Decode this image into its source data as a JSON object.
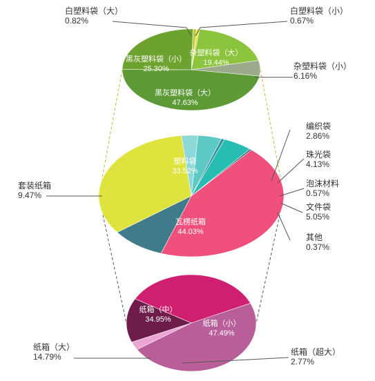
{
  "chart_data": [
    {
      "type": "pie",
      "title": "",
      "slices": [
        {
          "name": "白塑料袋（大）",
          "value_label": "0.82%",
          "value": 0.82,
          "color": "#b3cc38"
        },
        {
          "name": "白塑料袋（小）",
          "value_label": "0.67%",
          "value": 0.67,
          "color": "#e6e23c"
        },
        {
          "name": "杂塑料袋（大）",
          "value_label": "19.44%",
          "value": 19.44,
          "color": "#8cc43e"
        },
        {
          "name": "杂塑料袋（小）",
          "value_label": "6.16%",
          "value": 6.16,
          "color": "#9cab8c"
        },
        {
          "name": "黑灰塑料袋（大）",
          "value_label": "47.63%",
          "value": 47.63,
          "color": "#5d9a36"
        },
        {
          "name": "黑灰塑料袋（小）",
          "value_label": "25.30%",
          "value": 25.3,
          "color": "#6ea22f"
        }
      ]
    },
    {
      "type": "pie",
      "title": "",
      "slices": [
        {
          "name": "塑料袋",
          "value_label": "33.52%",
          "value": 33.52,
          "color": "#dfe33e"
        },
        {
          "name": "编织袋",
          "value_label": "2.86%",
          "value": 2.86,
          "color": "#8fd8d8"
        },
        {
          "name": "珠光袋",
          "value_label": "4.13%",
          "value": 4.13,
          "color": "#5cc9c4"
        },
        {
          "name": "泡沫材料",
          "value_label": "0.57%",
          "value": 0.57,
          "color": "#2f8f9a"
        },
        {
          "name": "文件袋",
          "value_label": "5.05%",
          "value": 5.05,
          "color": "#28bdb2"
        },
        {
          "name": "其他",
          "value_label": "0.37%",
          "value": 0.37,
          "color": "#2a6c7a"
        },
        {
          "name": "瓦楞纸箱",
          "value_label": "44.03%",
          "value": 44.03,
          "color": "#f0517c"
        },
        {
          "name": "套装纸箱",
          "value_label": "9.47%",
          "value": 9.47,
          "color": "#3f7b8a"
        }
      ]
    },
    {
      "type": "pie",
      "title": "",
      "slices": [
        {
          "name": "纸箱（中）",
          "value_label": "34.95%",
          "value": 34.95,
          "color": "#cf1f70"
        },
        {
          "name": "纸箱（小）",
          "value_label": "47.49%",
          "value": 47.49,
          "color": "#b85e98"
        },
        {
          "name": "纸箱（超大）",
          "value_label": "2.77%",
          "value": 2.77,
          "color": "#e9a6d4"
        },
        {
          "name": "纸箱（大）",
          "value_label": "14.79%",
          "value": 14.79,
          "color": "#6e1d4a"
        }
      ]
    }
  ]
}
